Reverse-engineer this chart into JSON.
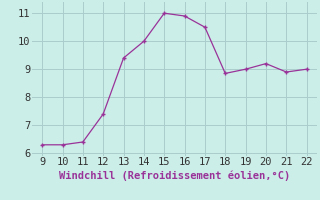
{
  "x": [
    9,
    10,
    11,
    12,
    13,
    14,
    15,
    16,
    17,
    18,
    19,
    20,
    21,
    22
  ],
  "y": [
    6.3,
    6.3,
    6.4,
    7.4,
    9.4,
    10.0,
    11.0,
    10.9,
    10.5,
    8.85,
    9.0,
    9.2,
    8.9,
    9.0
  ],
  "line_color": "#993399",
  "marker": "+",
  "marker_color": "#993399",
  "bg_color": "#cceee8",
  "grid_color": "#aacccc",
  "xlabel": "Windchill (Refroidissement éolien,°C)",
  "xlabel_color": "#993399",
  "xlim": [
    8.5,
    22.5
  ],
  "ylim": [
    5.9,
    11.4
  ],
  "xticks": [
    9,
    10,
    11,
    12,
    13,
    14,
    15,
    16,
    17,
    18,
    19,
    20,
    21,
    22
  ],
  "yticks": [
    6,
    7,
    8,
    9,
    10,
    11
  ],
  "tick_color": "#333333",
  "font_size_axis": 7.5,
  "font_size_ticks": 7.5,
  "linewidth": 0.9,
  "markersize": 3.5
}
